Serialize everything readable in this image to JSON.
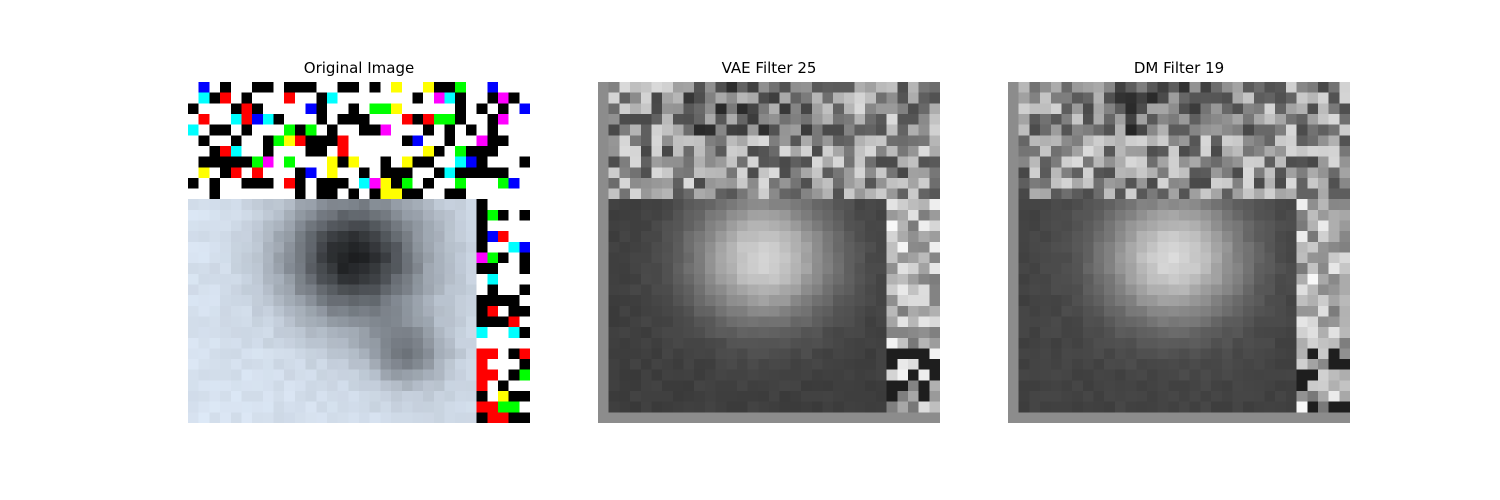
{
  "panels": [
    {
      "title": "Original Image",
      "type": "color-noise"
    },
    {
      "title": "VAE Filter 25",
      "type": "grayscale-map"
    },
    {
      "title": "DM Filter 19",
      "type": "grayscale-map"
    }
  ],
  "colors": {
    "background": "#ffffff",
    "noise_palette": [
      "#000000",
      "#ff0000",
      "#0000ff",
      "#ff00ff",
      "#00ffff",
      "#ffff00",
      "#00ff00"
    ],
    "photo_snow": "#dde6ee",
    "photo_dark": "#2a2a2e"
  }
}
